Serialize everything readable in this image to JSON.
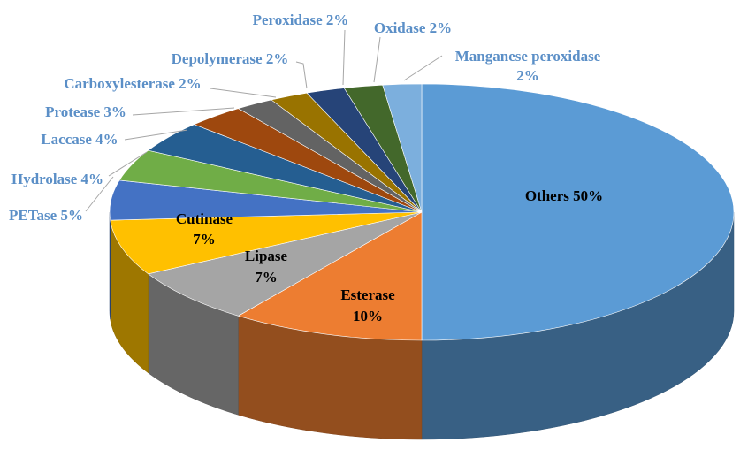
{
  "chart_data": {
    "type": "pie",
    "style": "3d-pie",
    "title": "",
    "slices": [
      {
        "label": "Others",
        "value": 50,
        "display": "Others 50%",
        "color": "#5b9bd5"
      },
      {
        "label": "Esterase",
        "value": 10,
        "display": "Esterase 10%",
        "color": "#ed7d31"
      },
      {
        "label": "Lipase",
        "value": 7,
        "display": "Lipase 7%",
        "color": "#a5a5a5"
      },
      {
        "label": "Cutinase",
        "value": 7,
        "display": "Cutinase 7%",
        "color": "#ffc000"
      },
      {
        "label": "PETase",
        "value": 5,
        "display": "PETase 5%",
        "color": "#4472c4"
      },
      {
        "label": "Hydrolase",
        "value": 4,
        "display": "Hydrolase 4%",
        "color": "#70ad47"
      },
      {
        "label": "Laccase",
        "value": 4,
        "display": "Laccase 4%",
        "color": "#255e91"
      },
      {
        "label": "Protease",
        "value": 3,
        "display": "Protease 3%",
        "color": "#9e480e"
      },
      {
        "label": "Carboxylesterase",
        "value": 2,
        "display": "Carboxylesterase 2%",
        "color": "#636363"
      },
      {
        "label": "Depolymerase",
        "value": 2,
        "display": "Depolymerase 2%",
        "color": "#997300"
      },
      {
        "label": "Peroxidase",
        "value": 2,
        "display": "Peroxidase 2%",
        "color": "#264478"
      },
      {
        "label": "Oxidase",
        "value": 2,
        "display": "Oxidase 2%",
        "color": "#43682b"
      },
      {
        "label": "Manganese peroxidase",
        "value": 2,
        "display": "Manganese peroxidase 2%",
        "color": "#7cafdd"
      }
    ],
    "label_color_outside": "#5b8fc7",
    "label_color_inside": "#000000"
  }
}
